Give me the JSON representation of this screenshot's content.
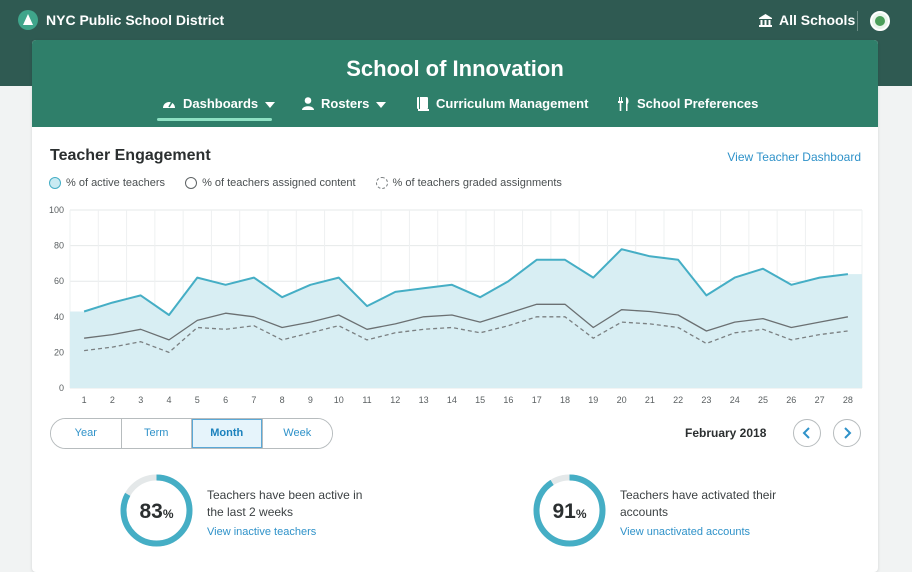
{
  "header": {
    "district": "NYC Public School District",
    "school_picker": "All Schools",
    "logo_icon": "district-logo-icon",
    "avatar_icon": "user-avatar-icon"
  },
  "school": {
    "title": "School of Innovation"
  },
  "nav": {
    "items": [
      {
        "label": "Dashboards",
        "icon": "dashboard-gauge-icon",
        "has_dropdown": true,
        "active": true
      },
      {
        "label": "Rosters",
        "icon": "person-icon",
        "has_dropdown": true,
        "active": false
      },
      {
        "label": "Curriculum Management",
        "icon": "book-icon",
        "has_dropdown": false,
        "active": false
      },
      {
        "label": "School Preferences",
        "icon": "utensils-icon",
        "has_dropdown": false,
        "active": false
      }
    ]
  },
  "engagement": {
    "title": "Teacher Engagement",
    "view_link": "View Teacher Dashboard",
    "legend": [
      {
        "label": "% of active teachers",
        "style": "filled",
        "color": "#45aec5"
      },
      {
        "label": "% of teachers assigned content",
        "style": "solid",
        "color": "#5f6466"
      },
      {
        "label": "% of teachers graded assignments",
        "style": "dashed",
        "color": "#7b8082"
      }
    ]
  },
  "chart_data": {
    "type": "area",
    "x": [
      1,
      2,
      3,
      4,
      5,
      6,
      7,
      8,
      9,
      10,
      11,
      12,
      13,
      14,
      15,
      16,
      17,
      18,
      19,
      20,
      21,
      22,
      23,
      24,
      25,
      26,
      27,
      28
    ],
    "ylim": [
      0,
      100
    ],
    "yticks": [
      0,
      20,
      40,
      60,
      80,
      100
    ],
    "grid": true,
    "series": [
      {
        "name": "% of active teachers",
        "style": "area",
        "color": "#45aec5",
        "values": [
          43,
          48,
          52,
          41,
          62,
          58,
          62,
          51,
          58,
          62,
          46,
          54,
          56,
          58,
          51,
          60,
          72,
          72,
          62,
          78,
          74,
          72,
          52,
          62,
          67,
          58,
          62,
          64
        ]
      },
      {
        "name": "% of teachers assigned content",
        "style": "solid",
        "color": "#6b7072",
        "values": [
          28,
          30,
          33,
          27,
          38,
          42,
          40,
          34,
          37,
          41,
          33,
          36,
          40,
          41,
          37,
          42,
          47,
          47,
          34,
          44,
          43,
          41,
          32,
          37,
          39,
          34,
          37,
          40
        ]
      },
      {
        "name": "% of teachers graded assignments",
        "style": "dashed",
        "color": "#7b8082",
        "values": [
          21,
          23,
          26,
          20,
          34,
          33,
          35,
          27,
          31,
          35,
          27,
          31,
          33,
          34,
          31,
          35,
          40,
          40,
          28,
          37,
          36,
          34,
          25,
          31,
          33,
          27,
          30,
          32
        ]
      }
    ]
  },
  "range": {
    "options": [
      "Year",
      "Term",
      "Month",
      "Week"
    ],
    "selected": "Month"
  },
  "period": {
    "label": "February 2018",
    "prev_icon": "chevron-left-icon",
    "next_icon": "chevron-right-icon"
  },
  "stats": [
    {
      "value": "83",
      "unit": "%",
      "fraction": 0.83,
      "text": "Teachers have been active in the last 2 weeks",
      "link": "View inactive teachers",
      "color": "#45aec5"
    },
    {
      "value": "91",
      "unit": "%",
      "fraction": 0.91,
      "text": "Teachers have activated their accounts",
      "link": "View unactivated accounts",
      "color": "#45aec5"
    }
  ]
}
